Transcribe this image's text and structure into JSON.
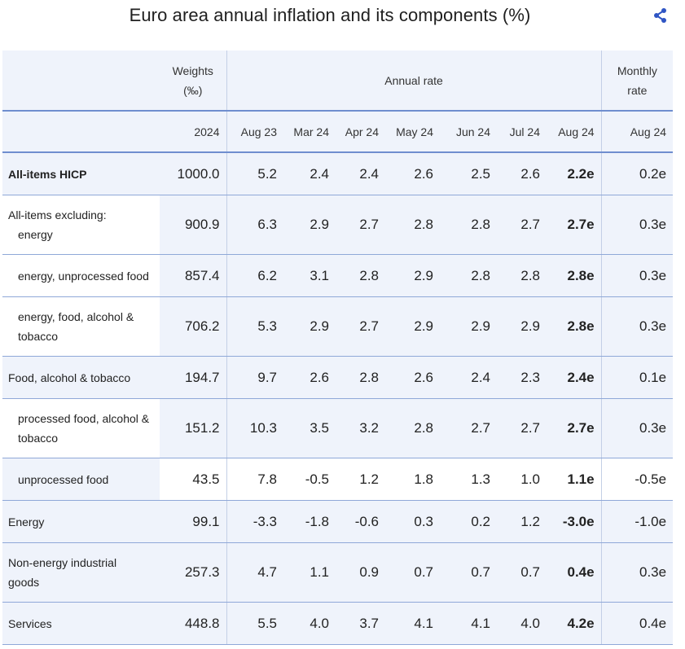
{
  "title": "Euro area annual inflation and its components (%)",
  "icons": {
    "share": "share-icon"
  },
  "header": {
    "weights_line1": "Weights",
    "weights_line2": "(‰)",
    "annual_rate": "Annual rate",
    "monthly_line1": "Monthly",
    "monthly_line2": "rate",
    "weights_year": "2024",
    "columns": [
      "Aug 23",
      "Mar 24",
      "Apr 24",
      "May 24",
      "Jun 24",
      "Jul 24",
      "Aug 24"
    ],
    "monthly_col": "Aug 24"
  },
  "rows": [
    {
      "label1": "All-items HICP",
      "label2": "",
      "weight": "1000.0",
      "values": [
        "5.2",
        "2.4",
        "2.4",
        "2.6",
        "2.5",
        "2.6",
        "2.2e"
      ],
      "monthly": "0.2e"
    },
    {
      "label1": "All-items excluding:",
      "label2": "energy",
      "weight": "900.9",
      "values": [
        "6.3",
        "2.9",
        "2.7",
        "2.8",
        "2.8",
        "2.7",
        "2.7e"
      ],
      "monthly": "0.3e"
    },
    {
      "label1": "energy, unprocessed food",
      "label2": "",
      "weight": "857.4",
      "values": [
        "6.2",
        "3.1",
        "2.8",
        "2.9",
        "2.8",
        "2.8",
        "2.8e"
      ],
      "monthly": "0.3e"
    },
    {
      "label1": "energy, food, alcohol &",
      "label2": "tobacco",
      "weight": "706.2",
      "values": [
        "5.3",
        "2.9",
        "2.7",
        "2.9",
        "2.9",
        "2.9",
        "2.8e"
      ],
      "monthly": "0.3e"
    },
    {
      "label1": "Food, alcohol & tobacco",
      "label2": "",
      "weight": "194.7",
      "values": [
        "9.7",
        "2.6",
        "2.8",
        "2.6",
        "2.4",
        "2.3",
        "2.4e"
      ],
      "monthly": "0.1e"
    },
    {
      "label1": "processed food, alcohol &",
      "label2": "tobacco",
      "weight": "151.2",
      "values": [
        "10.3",
        "3.5",
        "3.2",
        "2.8",
        "2.7",
        "2.7",
        "2.7e"
      ],
      "monthly": "0.3e"
    },
    {
      "label1": "unprocessed food",
      "label2": "",
      "weight": "43.5",
      "values": [
        "7.8",
        "-0.5",
        "1.2",
        "1.8",
        "1.3",
        "1.0",
        "1.1e"
      ],
      "monthly": "-0.5e"
    },
    {
      "label1": "Energy",
      "label2": "",
      "weight": "99.1",
      "values": [
        "-3.3",
        "-1.8",
        "-0.6",
        "0.3",
        "0.2",
        "1.2",
        "-3.0e"
      ],
      "monthly": "-1.0e"
    },
    {
      "label1": "Non-energy industrial",
      "label2": "goods",
      "weight": "257.3",
      "values": [
        "4.7",
        "1.1",
        "0.9",
        "0.7",
        "0.7",
        "0.7",
        "0.4e"
      ],
      "monthly": "0.3e"
    },
    {
      "label1": "Services",
      "label2": "",
      "weight": "448.8",
      "values": [
        "5.5",
        "4.0",
        "3.7",
        "4.1",
        "4.1",
        "4.0",
        "4.2e"
      ],
      "monthly": "0.4e"
    }
  ]
}
